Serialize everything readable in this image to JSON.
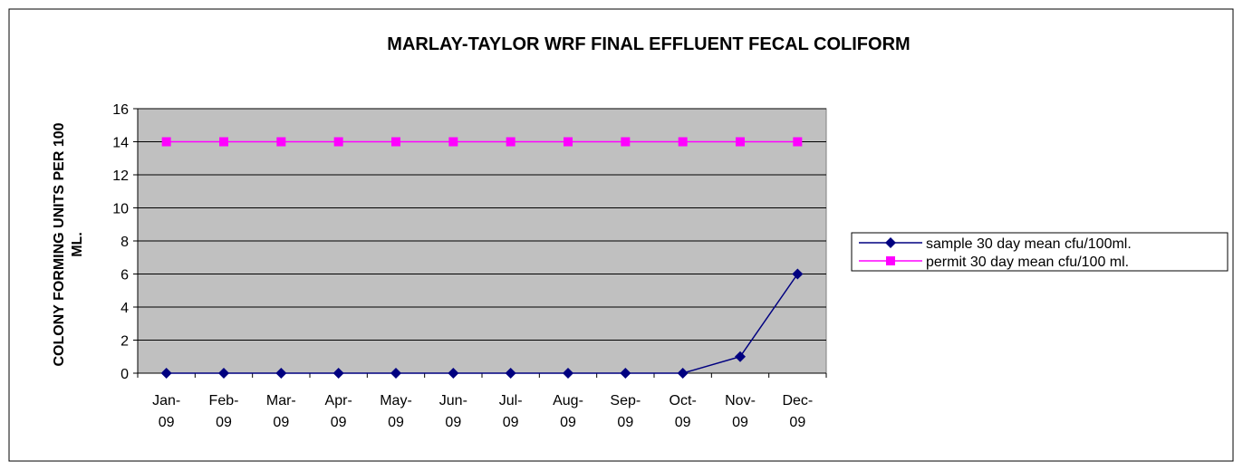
{
  "chart_data": {
    "type": "line",
    "title": "MARLAY-TAYLOR WRF FINAL EFFLUENT FECAL COLIFORM",
    "y_label": "COLONY FORMING UNITS PER 100 ML.",
    "categories": [
      "Jan-09",
      "Feb-09",
      "Mar-09",
      "Apr-09",
      "May-09",
      "Jun-09",
      "Jul-09",
      "Aug-09",
      "Sep-09",
      "Oct-09",
      "Nov-09",
      "Dec-09"
    ],
    "series": [
      {
        "name": "sample 30 day mean cfu/100ml.",
        "color": "#000080",
        "marker": "diamond",
        "values": [
          0,
          0,
          0,
          0,
          0,
          0,
          0,
          0,
          0,
          0,
          1,
          6
        ]
      },
      {
        "name": "permit 30 day mean cfu/100 ml.",
        "color": "#ff00ff",
        "marker": "square",
        "values": [
          14,
          14,
          14,
          14,
          14,
          14,
          14,
          14,
          14,
          14,
          14,
          14
        ]
      }
    ],
    "ylim": [
      0,
      16
    ],
    "yticks": [
      0,
      2,
      4,
      6,
      8,
      10,
      12,
      14,
      16
    ],
    "grid": true,
    "legend": "right"
  }
}
